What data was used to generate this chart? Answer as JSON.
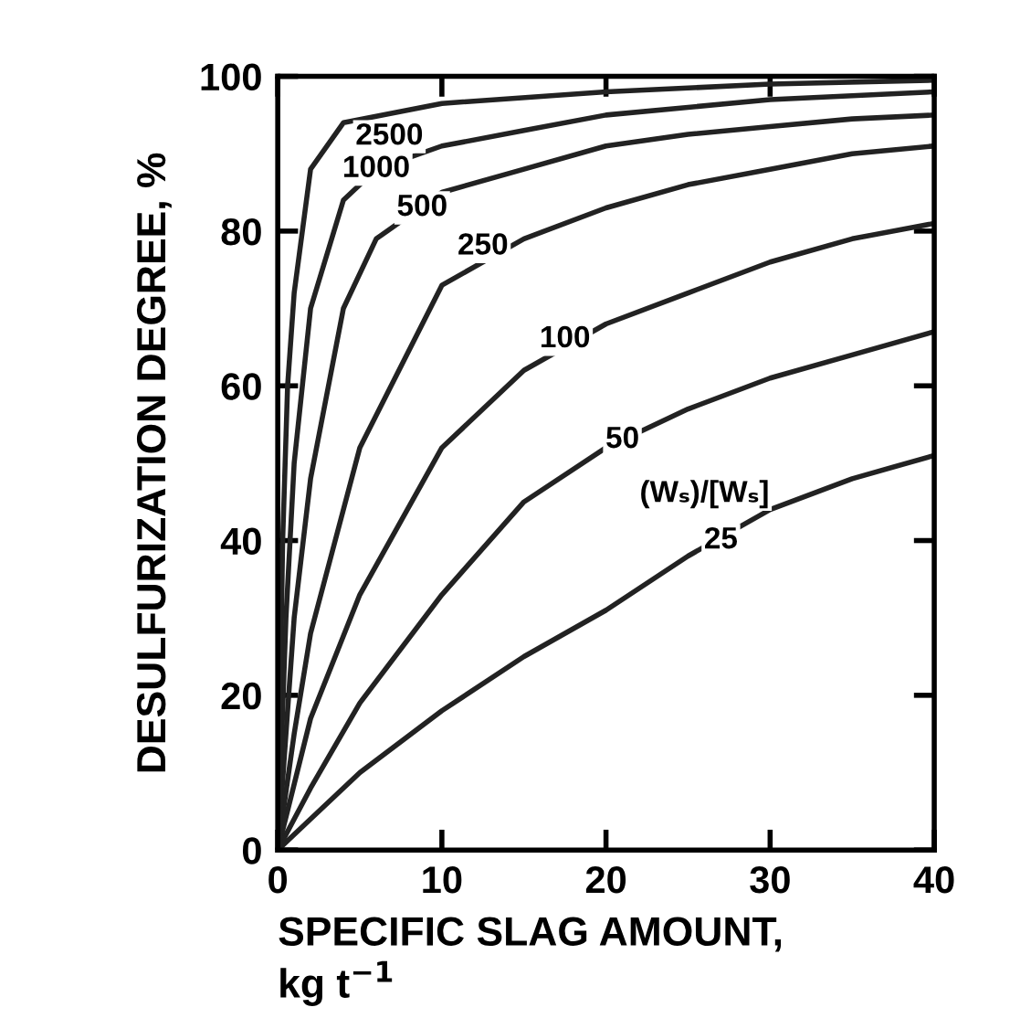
{
  "chart_data": {
    "type": "line",
    "xlabel": "SPECIFIC SLAG AMOUNT,\nkg t$^{−1}$",
    "ylabel": "DESULFURIZATION DEGREE, %",
    "xlim": [
      0,
      40
    ],
    "ylim": [
      0,
      100
    ],
    "xticks": [
      0,
      10,
      20,
      30,
      40
    ],
    "yticks": [
      0,
      20,
      40,
      60,
      80,
      100
    ],
    "grid": false,
    "legend": false,
    "marker": "none",
    "line_style": "solid",
    "series": [
      {
        "color": "#222222",
        "x": [
          0,
          2,
          5,
          10,
          15,
          20,
          25,
          30,
          35,
          40
        ],
        "values": [
          0,
          4,
          10,
          18,
          25,
          31,
          38,
          44,
          48,
          51
        ]
      },
      {
        "color": "#222222",
        "x": [
          0,
          2,
          5,
          10,
          15,
          20,
          25,
          30,
          35,
          40
        ],
        "values": [
          0,
          8,
          19,
          33,
          45,
          52,
          57,
          61,
          64,
          67
        ]
      },
      {
        "color": "#222222",
        "x": [
          0,
          2,
          5,
          10,
          15,
          20,
          25,
          30,
          35,
          40
        ],
        "values": [
          0,
          17,
          33,
          52,
          62,
          68,
          72,
          76,
          79,
          81
        ]
      },
      {
        "color": "#222222",
        "x": [
          0,
          1,
          2,
          5,
          10,
          15,
          20,
          25,
          30,
          35,
          40
        ],
        "values": [
          0,
          15,
          28,
          52,
          73,
          79,
          83,
          86,
          88,
          90,
          91
        ]
      },
      {
        "color": "#222222",
        "x": [
          0,
          1,
          2,
          4,
          6,
          10,
          15,
          20,
          25,
          30,
          35,
          40
        ],
        "values": [
          0,
          30,
          48,
          70,
          79,
          85,
          88,
          91,
          92.5,
          93.5,
          94.5,
          95
        ]
      },
      {
        "color": "#222222",
        "x": [
          0,
          0.5,
          1,
          2,
          4,
          6,
          10,
          15,
          20,
          30,
          40
        ],
        "values": [
          0,
          30,
          50,
          70,
          84,
          88,
          91,
          93,
          95,
          97,
          98
        ]
      },
      {
        "color": "#222222",
        "x": [
          0,
          0.3,
          0.6,
          1,
          2,
          4,
          10,
          20,
          30,
          40
        ],
        "values": [
          0,
          40,
          60,
          72,
          88,
          94,
          96.5,
          98,
          99,
          99.5
        ]
      }
    ],
    "annotations": [
      {
        "text": "25",
        "x": 27,
        "y": 40
      },
      {
        "text": "50",
        "x": 21,
        "y": 53
      },
      "(Wₛ)/[Wₛ]",
      {
        "text": "100",
        "x": 17.5,
        "y": 66
      },
      {
        "text": "250",
        "x": 12.5,
        "y": 78
      },
      {
        "text": "500",
        "x": 8.8,
        "y": 83
      },
      {
        "text": "1000",
        "x": 6,
        "y": 88
      },
      {
        "text": "2500",
        "x": 6.8,
        "y": 92.2
      }
    ]
  }
}
